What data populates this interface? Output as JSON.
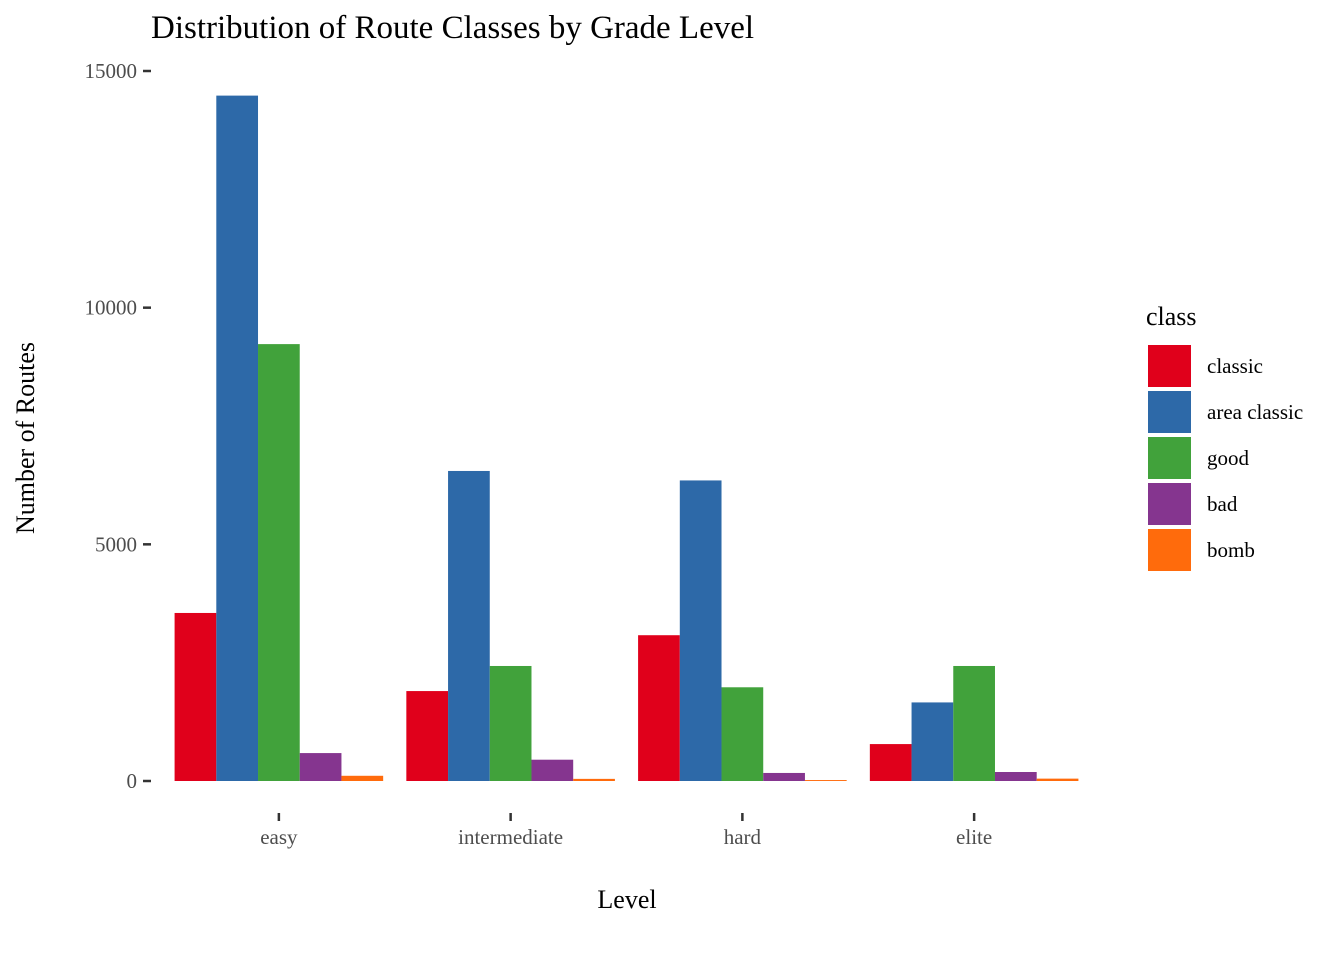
{
  "chart_data": {
    "type": "bar",
    "title": "Distribution of Route Classes by Grade Level",
    "xlabel": "Level",
    "ylabel": "Number of Routes",
    "categories": [
      "easy",
      "intermediate",
      "hard",
      "elite"
    ],
    "ylim": [
      0,
      15000
    ],
    "yticks": [
      0,
      5000,
      10000,
      15000
    ],
    "ytick_labels": [
      "0",
      "5000",
      "10000",
      "15000"
    ],
    "grid": false,
    "legend": {
      "title": "class",
      "placement": "right"
    },
    "series": [
      {
        "name": "classic",
        "color": "#E0001B",
        "values": [
          3550,
          1900,
          3080,
          780
        ]
      },
      {
        "name": "area classic",
        "color": "#2D69A8",
        "values": [
          14480,
          6550,
          6350,
          1660
        ]
      },
      {
        "name": "good",
        "color": "#41A23B",
        "values": [
          9230,
          2430,
          1980,
          2430
        ]
      },
      {
        "name": "bad",
        "color": "#85358F",
        "values": [
          590,
          450,
          170,
          190
        ]
      },
      {
        "name": "bomb",
        "color": "#FF6B0C",
        "values": [
          110,
          45,
          20,
          50
        ]
      }
    ]
  }
}
